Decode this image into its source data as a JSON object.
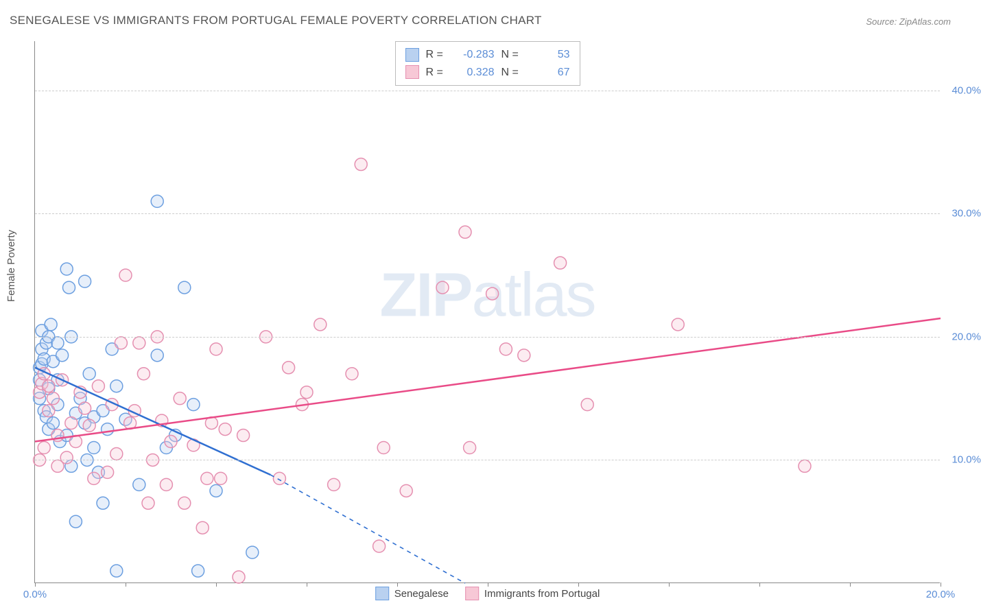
{
  "title": "SENEGALESE VS IMMIGRANTS FROM PORTUGAL FEMALE POVERTY CORRELATION CHART",
  "source": "Source: ZipAtlas.com",
  "ylabel": "Female Poverty",
  "watermark_bold": "ZIP",
  "watermark_light": "atlas",
  "chart": {
    "type": "scatter",
    "xlim": [
      0,
      20
    ],
    "ylim": [
      0,
      44
    ],
    "xticks": [
      0,
      2,
      4,
      6,
      8,
      10,
      12,
      14,
      16,
      18,
      20
    ],
    "xtick_labels_shown": {
      "0": "0.0%",
      "20": "20.0%"
    },
    "yticks": [
      10,
      20,
      30,
      40
    ],
    "ytick_labels": {
      "10": "10.0%",
      "20": "20.0%",
      "30": "30.0%",
      "40": "40.0%"
    },
    "background_color": "#ffffff",
    "grid_color": "#cccccc",
    "axis_color": "#888888",
    "marker_radius": 9,
    "marker_fill_opacity": 0.35,
    "marker_stroke_width": 1.5,
    "label_color": "#5b8dd6"
  },
  "series": [
    {
      "name": "Senegalese",
      "color_fill": "#b9d1f0",
      "color_stroke": "#6c9fe0",
      "line_color": "#2f6fd1",
      "R": "-0.283",
      "N": "53",
      "regression": {
        "x1": 0,
        "y1": 17.5,
        "x2_solid": 5.2,
        "y2_solid": 8.8,
        "x2_dash": 9.5,
        "y2_dash": 0
      },
      "points": [
        [
          0.1,
          16.5
        ],
        [
          0.1,
          15.0
        ],
        [
          0.1,
          17.5
        ],
        [
          0.15,
          17.8
        ],
        [
          0.15,
          19.0
        ],
        [
          0.15,
          20.5
        ],
        [
          0.2,
          14.0
        ],
        [
          0.2,
          18.2
        ],
        [
          0.25,
          19.5
        ],
        [
          0.25,
          13.5
        ],
        [
          0.3,
          20.0
        ],
        [
          0.3,
          12.5
        ],
        [
          0.3,
          15.8
        ],
        [
          0.35,
          21.0
        ],
        [
          0.4,
          18.0
        ],
        [
          0.4,
          13.0
        ],
        [
          0.5,
          19.5
        ],
        [
          0.5,
          16.5
        ],
        [
          0.5,
          14.5
        ],
        [
          0.55,
          11.5
        ],
        [
          0.6,
          18.5
        ],
        [
          0.7,
          12.0
        ],
        [
          0.7,
          25.5
        ],
        [
          0.75,
          24.0
        ],
        [
          0.8,
          20.0
        ],
        [
          0.8,
          9.5
        ],
        [
          0.9,
          13.8
        ],
        [
          0.9,
          5.0
        ],
        [
          1.0,
          15.0
        ],
        [
          1.1,
          13.0
        ],
        [
          1.1,
          24.5
        ],
        [
          1.15,
          10.0
        ],
        [
          1.2,
          17.0
        ],
        [
          1.3,
          13.5
        ],
        [
          1.3,
          11.0
        ],
        [
          1.4,
          9.0
        ],
        [
          1.5,
          6.5
        ],
        [
          1.5,
          14.0
        ],
        [
          1.6,
          12.5
        ],
        [
          1.7,
          19.0
        ],
        [
          1.8,
          1.0
        ],
        [
          1.8,
          16.0
        ],
        [
          2.0,
          13.3
        ],
        [
          2.3,
          8.0
        ],
        [
          2.7,
          18.5
        ],
        [
          2.7,
          31.0
        ],
        [
          2.9,
          11.0
        ],
        [
          3.1,
          12.0
        ],
        [
          3.3,
          24.0
        ],
        [
          3.5,
          14.5
        ],
        [
          3.6,
          1.0
        ],
        [
          4.0,
          7.5
        ],
        [
          4.8,
          2.5
        ]
      ]
    },
    {
      "name": "Immigrants from Portugal",
      "color_fill": "#f7c8d6",
      "color_stroke": "#e58fb0",
      "line_color": "#e94b87",
      "R": "0.328",
      "N": "67",
      "regression": {
        "x1": 0,
        "y1": 11.5,
        "x2_solid": 20,
        "y2_solid": 21.5
      },
      "points": [
        [
          0.1,
          10.0
        ],
        [
          0.1,
          15.5
        ],
        [
          0.15,
          16.2
        ],
        [
          0.2,
          11.0
        ],
        [
          0.2,
          17.0
        ],
        [
          0.3,
          14.0
        ],
        [
          0.3,
          16.0
        ],
        [
          0.4,
          15.0
        ],
        [
          0.5,
          12.0
        ],
        [
          0.5,
          9.5
        ],
        [
          0.6,
          16.5
        ],
        [
          0.7,
          10.2
        ],
        [
          0.8,
          13.0
        ],
        [
          0.9,
          11.5
        ],
        [
          1.0,
          15.5
        ],
        [
          1.1,
          14.2
        ],
        [
          1.2,
          12.8
        ],
        [
          1.3,
          8.5
        ],
        [
          1.4,
          16.0
        ],
        [
          1.6,
          9.0
        ],
        [
          1.7,
          14.5
        ],
        [
          1.8,
          10.5
        ],
        [
          1.9,
          19.5
        ],
        [
          2.0,
          25.0
        ],
        [
          2.1,
          13.0
        ],
        [
          2.2,
          14.0
        ],
        [
          2.3,
          19.5
        ],
        [
          2.4,
          17.0
        ],
        [
          2.5,
          6.5
        ],
        [
          2.6,
          10.0
        ],
        [
          2.7,
          20.0
        ],
        [
          2.8,
          13.2
        ],
        [
          2.9,
          8.0
        ],
        [
          3.0,
          11.5
        ],
        [
          3.2,
          15.0
        ],
        [
          3.3,
          6.5
        ],
        [
          3.5,
          11.2
        ],
        [
          3.7,
          4.5
        ],
        [
          3.8,
          8.5
        ],
        [
          3.9,
          13.0
        ],
        [
          4.0,
          19.0
        ],
        [
          4.1,
          8.5
        ],
        [
          4.2,
          12.5
        ],
        [
          4.5,
          0.5
        ],
        [
          4.6,
          12.0
        ],
        [
          5.1,
          20.0
        ],
        [
          5.4,
          8.5
        ],
        [
          5.6,
          17.5
        ],
        [
          5.9,
          14.5
        ],
        [
          6.0,
          15.5
        ],
        [
          6.3,
          21.0
        ],
        [
          6.6,
          8.0
        ],
        [
          7.0,
          17.0
        ],
        [
          7.2,
          34.0
        ],
        [
          7.6,
          3.0
        ],
        [
          7.7,
          11.0
        ],
        [
          8.2,
          7.5
        ],
        [
          9.0,
          24.0
        ],
        [
          9.5,
          28.5
        ],
        [
          9.6,
          11.0
        ],
        [
          10.1,
          23.5
        ],
        [
          10.4,
          19.0
        ],
        [
          10.8,
          18.5
        ],
        [
          11.6,
          26.0
        ],
        [
          12.2,
          14.5
        ],
        [
          14.2,
          21.0
        ],
        [
          17.0,
          9.5
        ]
      ]
    }
  ],
  "legend_bottom": [
    {
      "label": "Senegalese",
      "swatch_fill": "#b9d1f0",
      "swatch_stroke": "#6c9fe0"
    },
    {
      "label": "Immigrants from Portugal",
      "swatch_fill": "#f7c8d6",
      "swatch_stroke": "#e58fb0"
    }
  ]
}
